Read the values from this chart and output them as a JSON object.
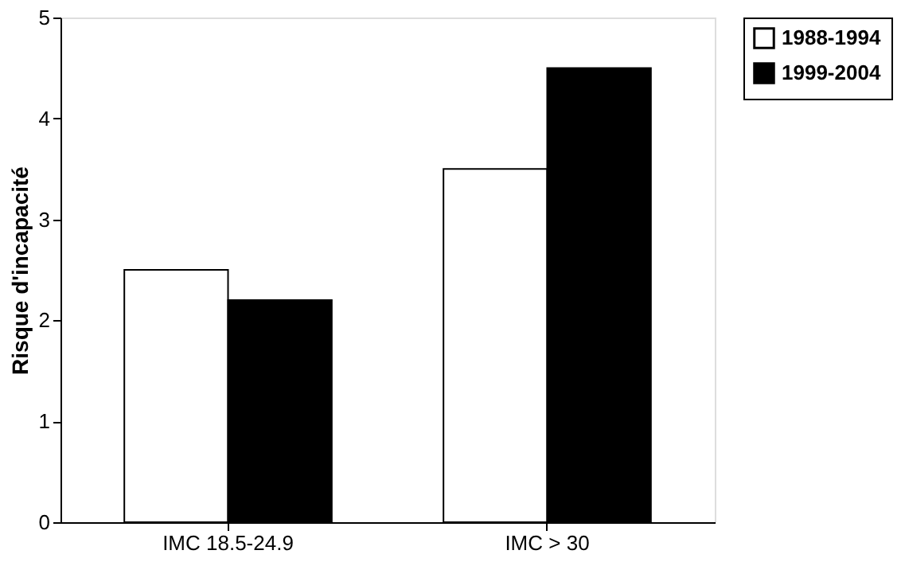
{
  "chart_data": {
    "type": "bar",
    "ylabel": "Risque d'incapacité",
    "categories": [
      "IMC 18.5-24.9",
      "IMC > 30"
    ],
    "series": [
      {
        "name": "1988-1994",
        "color": "#ffffff",
        "values": [
          2.5,
          3.5
        ]
      },
      {
        "name": "1999-2004",
        "color": "#000000",
        "values": [
          2.2,
          4.5
        ]
      }
    ],
    "ylim": [
      0,
      5
    ],
    "yticks": [
      0,
      1,
      2,
      3,
      4,
      5
    ],
    "grid": false,
    "legend": "right"
  }
}
